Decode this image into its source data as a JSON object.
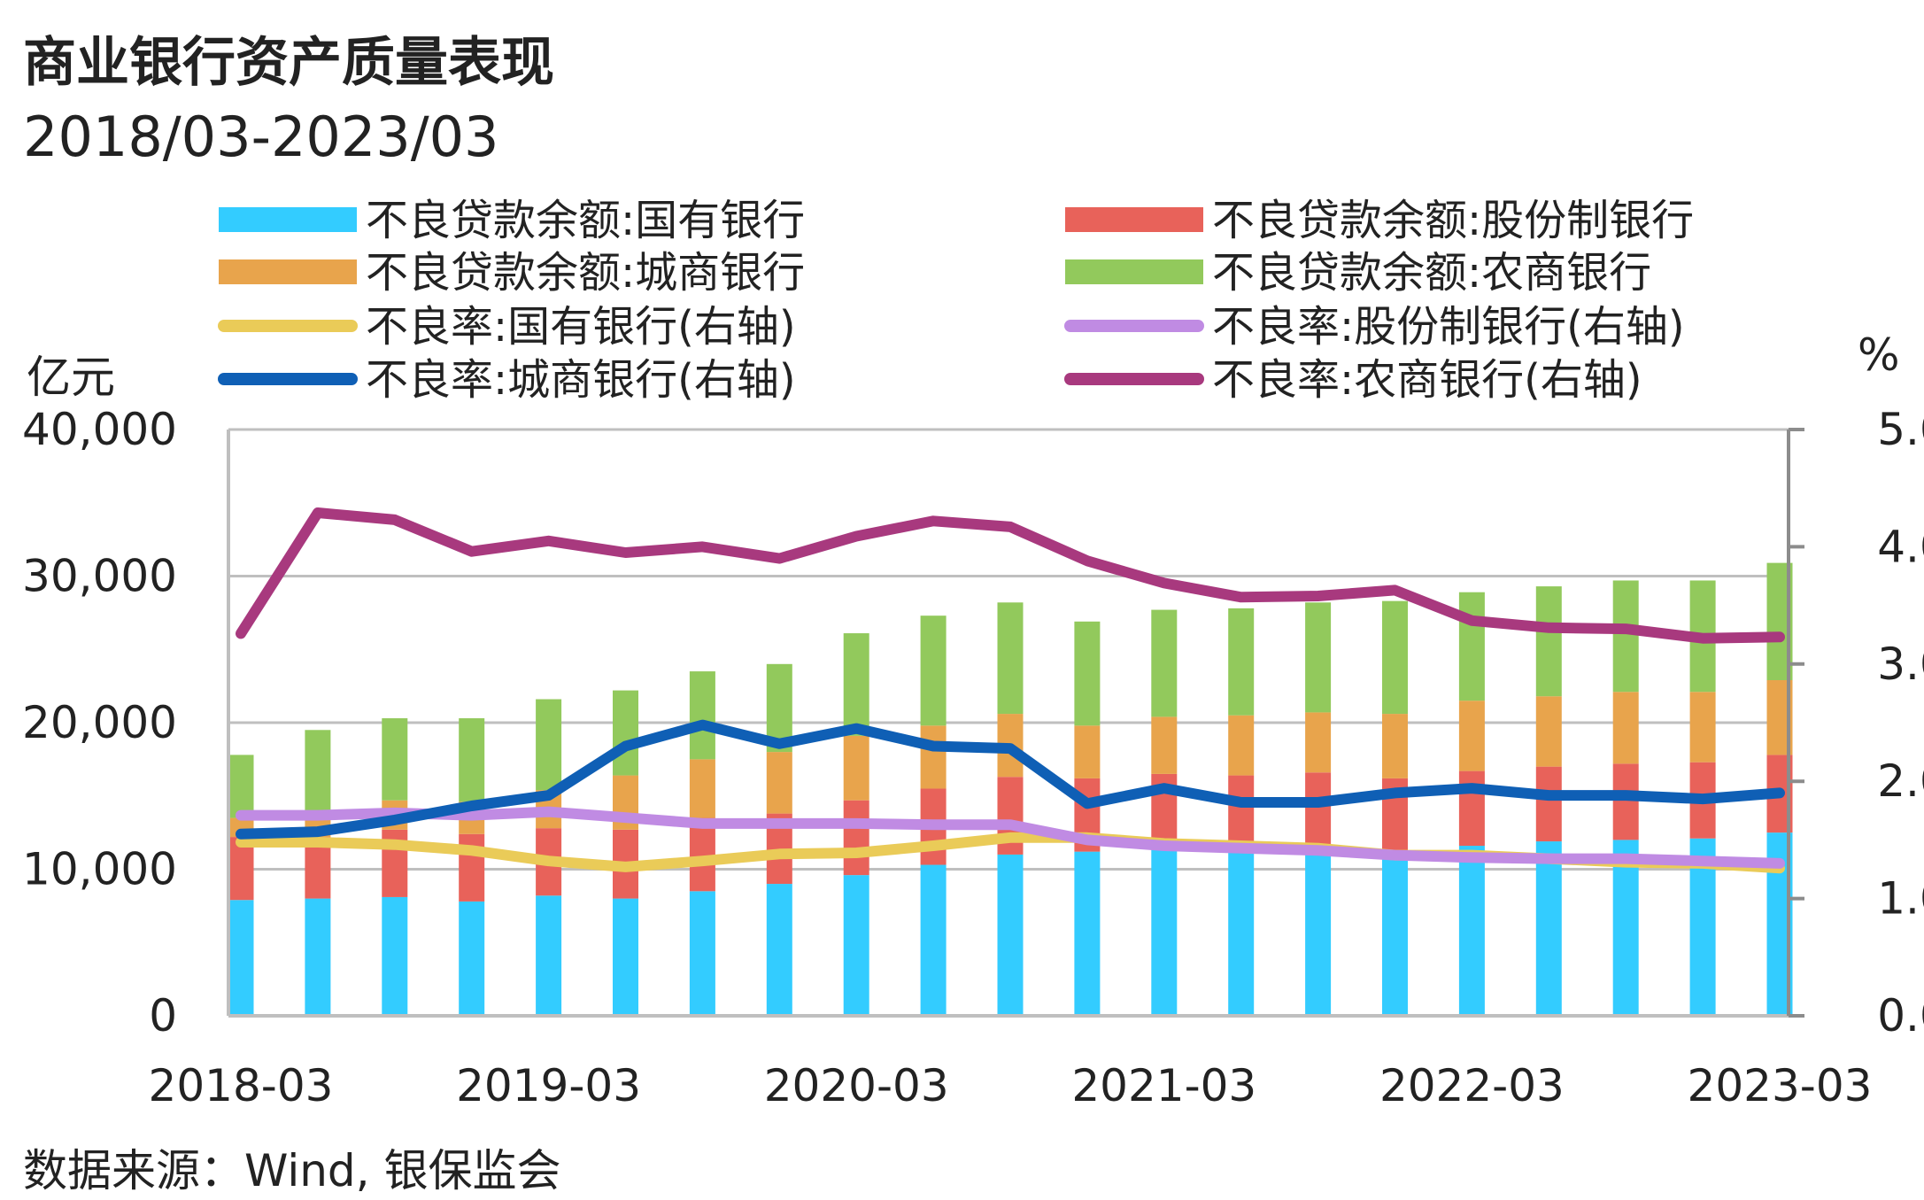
{
  "title": "商业银行资产质量表现",
  "subtitle": "2018/03-2023/03",
  "source": "数据来源：Wind, 银保监会",
  "chart_data": {
    "type": "bar",
    "stacked": true,
    "x": [
      "2018-03",
      "2018-06",
      "2018-09",
      "2018-12",
      "2019-03",
      "2019-06",
      "2019-09",
      "2019-12",
      "2020-03",
      "2020-06",
      "2020-09",
      "2020-12",
      "2021-03",
      "2021-06",
      "2021-09",
      "2021-12",
      "2022-03",
      "2022-06",
      "2022-09",
      "2022-12",
      "2023-03"
    ],
    "x_tick_labels": [
      "2018-03",
      "2019-03",
      "2020-03",
      "2021-03",
      "2022-03",
      "2023-03"
    ],
    "left_axis": {
      "unit": "亿元",
      "ylim": [
        0,
        40000
      ],
      "ticks": [
        "0",
        "10,000",
        "20,000",
        "30,000",
        "40,000"
      ]
    },
    "right_axis": {
      "unit": "%",
      "ylim": [
        0,
        5
      ],
      "ticks": [
        "0.0",
        "1.0",
        "2.0",
        "3.0",
        "4.0",
        "5.0"
      ]
    },
    "grid": true,
    "legend_position": "top",
    "bar_series": [
      {
        "name": "不良贷款余额:国有银行",
        "color": "#33CCFF",
        "values": [
          7900,
          8000,
          8100,
          7800,
          8200,
          8000,
          8500,
          9000,
          9600,
          10300,
          11000,
          11200,
          11500,
          11300,
          11000,
          10800,
          11600,
          11900,
          12000,
          12100,
          12500
        ]
      },
      {
        "name": "不良贷款余额:股份制银行",
        "color": "#E8625A",
        "values": [
          4300,
          4200,
          4600,
          4600,
          4600,
          4700,
          5000,
          4800,
          5100,
          5200,
          5300,
          5000,
          5000,
          5100,
          5600,
          5400,
          5100,
          5100,
          5200,
          5200,
          5300
        ]
      },
      {
        "name": "不良贷款余额:城商银行",
        "color": "#E8A44C",
        "values": [
          1300,
          1800,
          2000,
          2200,
          2600,
          3700,
          4000,
          4200,
          4400,
          4300,
          4300,
          3600,
          3900,
          4100,
          4100,
          4400,
          4800,
          4800,
          4900,
          4800,
          5100
        ]
      },
      {
        "name": "不良贷款余额:农商银行",
        "color": "#92C95C",
        "values": [
          4300,
          5500,
          5600,
          5700,
          6200,
          5800,
          6000,
          6000,
          7000,
          7500,
          7600,
          7100,
          7300,
          7300,
          7500,
          7700,
          7400,
          7500,
          7600,
          7600,
          8000
        ]
      }
    ],
    "line_series": [
      {
        "name": "不良率:国有银行(右轴)",
        "color": "#EACB58",
        "values": [
          1.48,
          1.48,
          1.46,
          1.41,
          1.32,
          1.27,
          1.32,
          1.38,
          1.39,
          1.45,
          1.52,
          1.52,
          1.47,
          1.45,
          1.43,
          1.37,
          1.37,
          1.34,
          1.31,
          1.3,
          1.26
        ]
      },
      {
        "name": "不良率:股份制银行(右轴)",
        "color": "#C08BE3",
        "values": [
          1.71,
          1.71,
          1.73,
          1.71,
          1.74,
          1.69,
          1.64,
          1.64,
          1.64,
          1.63,
          1.63,
          1.5,
          1.45,
          1.43,
          1.41,
          1.37,
          1.35,
          1.34,
          1.34,
          1.32,
          1.3
        ]
      },
      {
        "name": "不良率:城商银行(右轴)",
        "color": "#0F5FB5",
        "values": [
          1.55,
          1.57,
          1.67,
          1.79,
          1.88,
          2.3,
          2.48,
          2.32,
          2.45,
          2.3,
          2.28,
          1.81,
          1.94,
          1.82,
          1.82,
          1.9,
          1.94,
          1.88,
          1.88,
          1.85,
          1.9
        ]
      },
      {
        "name": "不良率:农商银行(右轴)",
        "color": "#A8397E",
        "values": [
          3.26,
          4.29,
          4.23,
          3.96,
          4.05,
          3.95,
          4.0,
          3.9,
          4.09,
          4.22,
          4.17,
          3.88,
          3.69,
          3.57,
          3.58,
          3.63,
          3.37,
          3.31,
          3.3,
          3.22,
          3.23
        ]
      }
    ]
  }
}
